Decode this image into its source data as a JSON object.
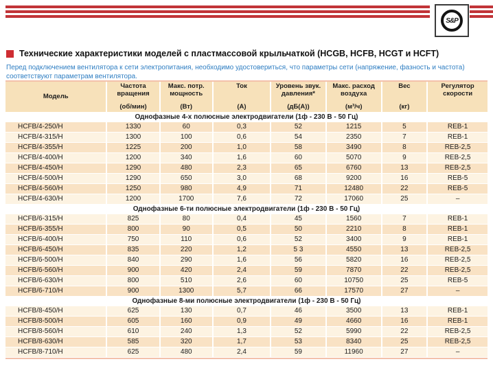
{
  "brand": {
    "logo_text": "S&P"
  },
  "page": {
    "title": "Технические характеристики моделей с пластмассовой крыльчаткой (HCGB, HCFB, HCGT и HCFT)",
    "notice": "Перед подключением вентилятора к сети электропитания, необходимо удостовериться, что параметры сети (напряжение, фазность и частота) соответствуют параметрам вентилятора."
  },
  "colors": {
    "accent_red": "#c13438",
    "notice_blue": "#2d7dc2",
    "header_bg": "#f7e1ba",
    "row_dark": "#f9e2c4",
    "row_light": "#fdf3e2",
    "table_rule": "#f3c0aa"
  },
  "table": {
    "columns": [
      {
        "label": "Модель",
        "unit": ""
      },
      {
        "label": "Частота\nвращения",
        "unit": "(об/мин)"
      },
      {
        "label": "Макс. потр.\nмощность",
        "unit": "(Вт)"
      },
      {
        "label": "Ток",
        "unit": "(А)"
      },
      {
        "label": "Уровень звук.\nдавления*",
        "unit": "(дБ(А))"
      },
      {
        "label": "Макс. расход\nвоздуха",
        "unit": "(м³/ч)"
      },
      {
        "label": "Вес",
        "unit": "(кг)"
      },
      {
        "label": "Регулятор\nскорости",
        "unit": ""
      }
    ],
    "sections": [
      {
        "title": "Однофазные 4-х полюсные электродвигатели (1ф - 230 В - 50 Гц)",
        "rows": [
          [
            "HCFB/4-250/H",
            "1330",
            "60",
            "0,3",
            "52",
            "1215",
            "5",
            "REB-1"
          ],
          [
            "HCFB/4-315/H",
            "1300",
            "100",
            "0,6",
            "54",
            "2350",
            "7",
            "REB-1"
          ],
          [
            "HCFB/4-355/H",
            "1225",
            "200",
            "1,0",
            "58",
            "3490",
            "8",
            "REB-2,5"
          ],
          [
            "HCFB/4-400/H",
            "1200",
            "340",
            "1,6",
            "60",
            "5070",
            "9",
            "REB-2,5"
          ],
          [
            "HCFB/4-450/H",
            "1290",
            "480",
            "2,3",
            "65",
            "6760",
            "13",
            "REB-2,5"
          ],
          [
            "HCFB/4-500/H",
            "1290",
            "650",
            "3,0",
            "68",
            "9200",
            "16",
            "REB-5"
          ],
          [
            "HCFB/4-560/H",
            "1250",
            "980",
            "4,9",
            "71",
            "12480",
            "22",
            "REB-5"
          ],
          [
            "HCFB/4-630/H",
            "1200",
            "1700",
            "7,6",
            "72",
            "17060",
            "25",
            "–"
          ]
        ]
      },
      {
        "title": "Однофазные 6-ти полюсные электродвигатели (1ф - 230 В - 50 Гц)",
        "rows": [
          [
            "HCFB/6-315/H",
            "825",
            "80",
            "0,4",
            "45",
            "1560",
            "7",
            "REB-1"
          ],
          [
            "HCFB/6-355/H",
            "800",
            "90",
            "0,5",
            "50",
            "2210",
            "8",
            "REB-1"
          ],
          [
            "HCFB/6-400/H",
            "750",
            "110",
            "0,6",
            "52",
            "3400",
            "9",
            "REB-1"
          ],
          [
            "HCFB/6-450/H",
            "835",
            "220",
            "1,2",
            "5 3",
            "4550",
            "13",
            "REB-2,5"
          ],
          [
            "HCFB/6-500/H",
            "840",
            "290",
            "1,6",
            "56",
            "5820",
            "16",
            "REB-2,5"
          ],
          [
            "HCFB/6-560/H",
            "900",
            "420",
            "2,4",
            "59",
            "7870",
            "22",
            "REB-2,5"
          ],
          [
            "HCFB/6-630/H",
            "800",
            "510",
            "2,6",
            "60",
            "10750",
            "25",
            "REB-5"
          ],
          [
            "HCFB/6-710/H",
            "900",
            "1300",
            "5,7",
            "66",
            "17570",
            "27",
            "–"
          ]
        ]
      },
      {
        "title": "Однофазные 8-ми полюсные электродвигатели (1ф - 230 В - 50 Гц)",
        "rows": [
          [
            "HCFB/8-450/H",
            "625",
            "130",
            "0,7",
            "46",
            "3500",
            "13",
            "REB-1"
          ],
          [
            "HCFB/8-500/H",
            "605",
            "160",
            "0,9",
            "49",
            "4660",
            "16",
            "REB-1"
          ],
          [
            "HCFB/8-560/H",
            "610",
            "240",
            "1,3",
            "52",
            "5990",
            "22",
            "REB-2,5"
          ],
          [
            "HCFB/8-630/H",
            "585",
            "320",
            "1,7",
            "53",
            "8340",
            "25",
            "REB-2,5"
          ],
          [
            "HCFB/8-710/H",
            "625",
            "480",
            "2,4",
            "59",
            "11960",
            "27",
            "–"
          ]
        ]
      }
    ]
  }
}
